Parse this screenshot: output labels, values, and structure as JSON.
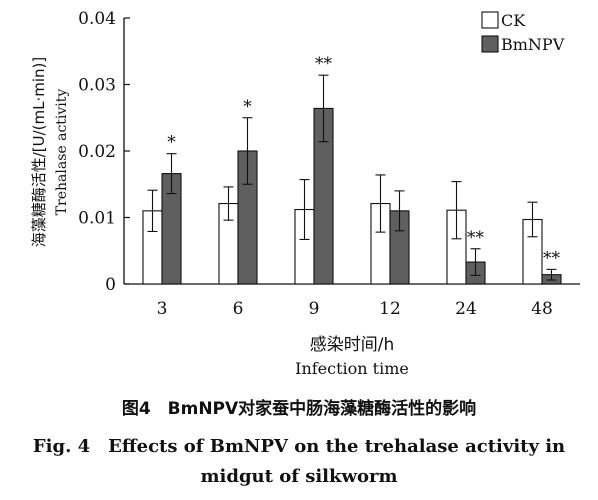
{
  "chart_data": {
    "type": "bar",
    "categories": [
      "3",
      "6",
      "9",
      "12",
      "24",
      "48"
    ],
    "series": [
      {
        "name": "CK",
        "values": [
          0.011,
          0.0121,
          0.0112,
          0.0121,
          0.0111,
          0.0097
        ],
        "errors": [
          0.0031,
          0.0025,
          0.0045,
          0.0043,
          0.0043,
          0.0026
        ],
        "significance": [
          "",
          "",
          "",
          "",
          "",
          ""
        ],
        "color": "#ffffff"
      },
      {
        "name": "BmNPV",
        "values": [
          0.0166,
          0.02,
          0.0264,
          0.011,
          0.0033,
          0.0014
        ],
        "errors": [
          0.003,
          0.005,
          0.005,
          0.003,
          0.002,
          0.0008
        ],
        "significance": [
          "*",
          "*",
          "**",
          "",
          "**",
          "**"
        ],
        "color": "#5f5f5f"
      }
    ],
    "ylim": [
      0,
      0.04
    ],
    "yticks": [
      "0",
      "0.01",
      "0.02",
      "0.03",
      "0.04"
    ],
    "ylabel_cn": "海藻糖酶活性/[U/(mL·min)]",
    "ylabel_en": "Trehalase activity",
    "xlabel_cn": "感染时间/h",
    "xlabel_en": "Infection time",
    "legend_position": "top-right",
    "grid": false
  },
  "caption": {
    "cn": "图4　BmNPV对家蚕中肠海藻糖酶活性的影响",
    "en_line1": "Fig. 4　Effects of BmNPV on the trehalase activity in",
    "en_line2": "midgut of silkworm"
  }
}
